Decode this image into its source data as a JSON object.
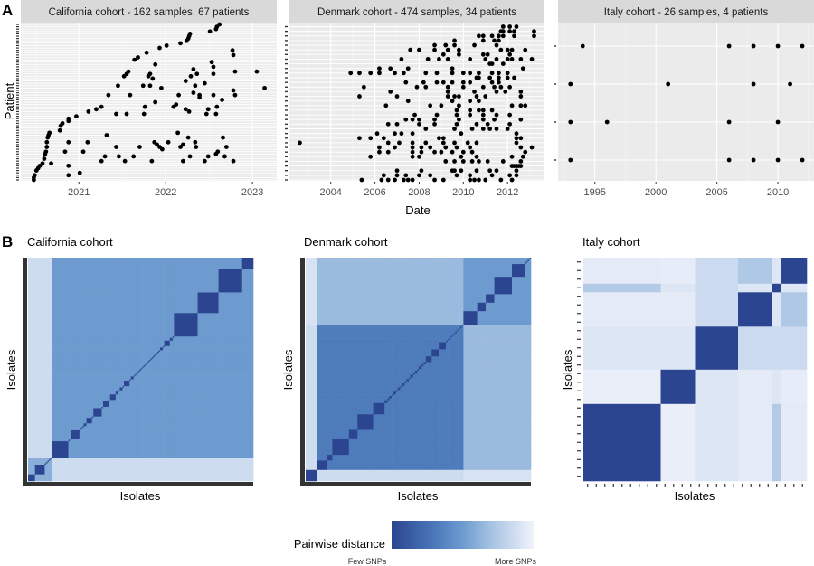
{
  "panel_labels": {
    "a": "A",
    "b": "B"
  },
  "colors": {
    "panel_bg": "#ebebeb",
    "strip_bg": "#d9d9d9",
    "dot": "#000000",
    "gradient": [
      "#2b4590",
      "#4a78b9",
      "#6d9bcf",
      "#a5c2e2",
      "#cbdaee",
      "#f0f3fc"
    ]
  },
  "chart_data": [
    {
      "type": "scatter",
      "panel": "A",
      "title": "California cohort - 162 samples, 67 patients",
      "xlabel": "",
      "ylabel": "Patient",
      "xlim": [
        2020.33,
        2023.28
      ],
      "xticks": [
        "2021",
        "2022",
        "2023"
      ],
      "xtick_values": [
        2021,
        2022,
        2023
      ],
      "n_patients": 67,
      "grid": true,
      "points": [
        [
          2020.48,
          1
        ],
        [
          2020.48,
          2
        ],
        [
          2020.49,
          3
        ],
        [
          2020.51,
          5
        ],
        [
          2020.53,
          6
        ],
        [
          2020.55,
          7
        ],
        [
          2020.58,
          8
        ],
        [
          2020.6,
          10
        ],
        [
          2020.61,
          12
        ],
        [
          2020.62,
          13
        ],
        [
          2020.63,
          15
        ],
        [
          2020.63,
          17
        ],
        [
          2020.64,
          19
        ],
        [
          2020.65,
          20
        ],
        [
          2020.66,
          21
        ],
        [
          2020.68,
          8
        ],
        [
          2020.78,
          22
        ],
        [
          2020.79,
          24
        ],
        [
          2020.81,
          25
        ],
        [
          2020.88,
          26
        ],
        [
          2020.88,
          27
        ],
        [
          2020.97,
          28
        ],
        [
          2020.88,
          17
        ],
        [
          2020.84,
          13
        ],
        [
          2020.88,
          7
        ],
        [
          2020.88,
          3
        ],
        [
          2021.01,
          4
        ],
        [
          2021.05,
          13
        ],
        [
          2021.1,
          17
        ],
        [
          2021.11,
          30
        ],
        [
          2021.2,
          31
        ],
        [
          2021.26,
          32
        ],
        [
          2021.34,
          37
        ],
        [
          2021.32,
          20
        ],
        [
          2021.3,
          11
        ],
        [
          2021.26,
          9
        ],
        [
          2021.43,
          29
        ],
        [
          2021.55,
          29
        ],
        [
          2021.43,
          15
        ],
        [
          2021.46,
          11
        ],
        [
          2021.53,
          9
        ],
        [
          2021.45,
          41
        ],
        [
          2021.59,
          37
        ],
        [
          2021.52,
          45
        ],
        [
          2021.55,
          46
        ],
        [
          2021.57,
          47
        ],
        [
          2021.64,
          52
        ],
        [
          2021.68,
          53
        ],
        [
          2021.78,
          55
        ],
        [
          2021.88,
          50
        ],
        [
          2021.8,
          45
        ],
        [
          2021.82,
          46
        ],
        [
          2021.85,
          44
        ],
        [
          2021.74,
          41
        ],
        [
          2021.82,
          41
        ],
        [
          2021.95,
          40
        ],
        [
          2021.76,
          32
        ],
        [
          2021.75,
          29
        ],
        [
          2021.88,
          34
        ],
        [
          2021.63,
          11
        ],
        [
          2021.7,
          15
        ],
        [
          2021.84,
          9
        ],
        [
          2021.87,
          17
        ],
        [
          2021.9,
          16
        ],
        [
          2021.93,
          15
        ],
        [
          2021.96,
          14
        ],
        [
          2022.03,
          17
        ],
        [
          2021.93,
          57
        ],
        [
          2022.01,
          58
        ],
        [
          2022.17,
          59
        ],
        [
          2022.24,
          60
        ],
        [
          2022.26,
          61
        ],
        [
          2022.28,
          63
        ],
        [
          2022.27,
          62
        ],
        [
          2022.51,
          64
        ],
        [
          2022.58,
          65
        ],
        [
          2022.59,
          66
        ],
        [
          2022.62,
          67
        ],
        [
          2022.23,
          43
        ],
        [
          2022.29,
          45
        ],
        [
          2022.32,
          48
        ],
        [
          2022.36,
          46
        ],
        [
          2022.34,
          41
        ],
        [
          2022.32,
          38
        ],
        [
          2022.39,
          37
        ],
        [
          2022.39,
          36
        ],
        [
          2022.45,
          42
        ],
        [
          2022.15,
          37
        ],
        [
          2022.09,
          32
        ],
        [
          2022.12,
          33
        ],
        [
          2022.27,
          30
        ],
        [
          2022.23,
          31
        ],
        [
          2022.14,
          21
        ],
        [
          2022.26,
          19
        ],
        [
          2022.34,
          17
        ],
        [
          2022.35,
          15
        ],
        [
          2022.17,
          15
        ],
        [
          2022.2,
          16
        ],
        [
          2022.28,
          11
        ],
        [
          2022.2,
          9
        ],
        [
          2022.45,
          9
        ],
        [
          2022.49,
          11
        ],
        [
          2022.58,
          12
        ],
        [
          2022.6,
          13
        ],
        [
          2022.68,
          11
        ],
        [
          2022.7,
          15
        ],
        [
          2022.66,
          19
        ],
        [
          2022.53,
          51
        ],
        [
          2022.55,
          49
        ],
        [
          2022.55,
          46
        ],
        [
          2022.55,
          37
        ],
        [
          2022.49,
          31
        ],
        [
          2022.47,
          29
        ],
        [
          2022.59,
          32
        ],
        [
          2022.58,
          29
        ],
        [
          2022.65,
          35
        ],
        [
          2022.77,
          56
        ],
        [
          2022.78,
          54
        ],
        [
          2022.8,
          47
        ],
        [
          2022.78,
          39
        ],
        [
          2022.8,
          37
        ],
        [
          2022.78,
          9
        ],
        [
          2023.05,
          47
        ],
        [
          2023.14,
          40
        ]
      ]
    },
    {
      "type": "scatter",
      "panel": "A",
      "title": "Denmark cohort - 474 samples, 34 patients",
      "xlabel": "Date",
      "ylabel": "",
      "xlim": [
        2002.13,
        2013.67
      ],
      "xticks": [
        "2004",
        "2006",
        "2008",
        "2010",
        "2012"
      ],
      "xtick_values": [
        2004,
        2006,
        2008,
        2010,
        2012
      ],
      "n_patients": 34,
      "grid": true,
      "patients": [
        [
          2005.4,
          2006.3,
          2006.6,
          2006.9,
          2007.3,
          2007.5,
          2007.7,
          2008.7,
          2009.1,
          2010.3,
          2010.5,
          2010.7,
          2011.0,
          2011.7,
          2012.2
        ],
        [
          2006.4,
          2007.0,
          2007.4,
          2008.0,
          2008.5,
          2009.7,
          2010.3,
          2011.3,
          2012.1,
          2012.4
        ],
        [
          2007.0,
          2008.1,
          2009.5,
          2009.6,
          2009.9,
          2010.6,
          2011.2,
          2011.5,
          2012.4
        ],
        [
          2012.2,
          2012.3,
          2012.4,
          2012.5,
          2012.6
        ],
        [
          2009.2,
          2009.6,
          2010.0,
          2010.4,
          2010.7,
          2011.1,
          2011.8,
          2012.6
        ],
        [
          2005.8,
          2007.7,
          2008.0,
          2009.9,
          2010.6,
          2012.2,
          2012.7
        ],
        [
          2006.2,
          2006.6,
          2007.7,
          2008.1,
          2008.7,
          2009.0,
          2009.5,
          2010.0,
          2010.4,
          2012.8
        ],
        [
          2006.2,
          2006.9,
          2007.7,
          2008.1,
          2008.5,
          2009.2,
          2009.7,
          2010.3,
          2012.6,
          2013.1
        ],
        [
          2002.6,
          2006.6,
          2007.1,
          2007.7,
          2008.3,
          2009.1,
          2009.6,
          2010.2,
          2010.6,
          2012.4
        ],
        [
          2005.3,
          2005.8,
          2006.4,
          2008.9,
          2009.1,
          2012.4,
          2012.6
        ],
        [
          2006.1,
          2006.9,
          2007.2,
          2007.7,
          2009.9,
          2012.4
        ],
        [
          2008.3,
          2009.6,
          2010.4,
          2010.9,
          2011.2,
          2011.5,
          2012.0
        ],
        [
          2006.6,
          2007.0,
          2008.0,
          2008.7,
          2009.7,
          2010.6,
          2011.1,
          2012.1
        ],
        [
          2007.4,
          2007.7,
          2008.0,
          2008.7,
          2009.8,
          2010.9,
          2011.4,
          2012.6
        ],
        [
          2007.8,
          2008.8,
          2009.7,
          2010.3,
          2010.9,
          2011.5,
          2012.1
        ],
        [
          2009.7,
          2010.3,
          2010.7,
          2010.9,
          2011.3
        ],
        [
          2006.5,
          2008.5,
          2009.0,
          2009.8,
          2012.2,
          2012.6,
          2012.8
        ],
        [
          2007.5,
          2009.5,
          2010.3,
          2010.7
        ],
        [
          2005.3,
          2007.0,
          2009.3,
          2009.6,
          2009.8,
          2010.6,
          2011.0,
          2012.6
        ],
        [
          2006.7,
          2009.3,
          2010.5,
          2011.5,
          2011.9,
          2012.6
        ],
        [
          2005.5,
          2007.9,
          2008.3,
          2009.3,
          2010.0,
          2010.9,
          2011.4,
          2011.7,
          2012.1
        ],
        [
          2007.4,
          2008.2,
          2008.8,
          2009.1,
          2009.5,
          2010.0,
          2010.3,
          2011.3,
          2011.6
        ],
        [
          2010.6,
          2010.7,
          2011.2,
          2011.6,
          2012.0,
          2012.3
        ],
        [
          2004.9,
          2005.3,
          2005.8,
          2006.2,
          2006.9,
          2007.3,
          2008.3,
          2008.8,
          2009.5,
          2010.0,
          2010.3,
          2010.7,
          2011.3,
          2011.6,
          2012.0
        ],
        [
          2006.2,
          2006.7,
          2007.5,
          2009.5,
          2012.7
        ],
        [
          2011.2,
          2011.3,
          2011.8
        ],
        [
          2007.2,
          2008.4,
          2008.9,
          2009.3,
          2010.3,
          2011.0,
          2011.5,
          2012.0,
          2012.2,
          2012.6,
          2013.1
        ],
        [
          2009.1,
          2009.8,
          2010.9,
          2011.1,
          2012.1
        ],
        [
          2007.6,
          2008.0,
          2008.7,
          2009.3,
          2009.8,
          2011.7,
          2012.0,
          2012.2,
          2012.8
        ],
        [
          2008.7,
          2009.2,
          2009.6,
          2010.5,
          2011.5
        ],
        [
          2009.6,
          2010.9,
          2011.4,
          2011.6
        ],
        [
          2010.7,
          2010.9,
          2011.3,
          2011.6,
          2011.8,
          2012.3,
          2013.2
        ],
        [
          2011.7,
          2011.8,
          2012.1,
          2012.3,
          2013.2
        ],
        [
          2011.8,
          2012.1,
          2012.4
        ]
      ]
    },
    {
      "type": "scatter",
      "panel": "A",
      "title": "Italy cohort - 26 samples, 4 patients",
      "xlabel": "",
      "ylabel": "",
      "xlim": [
        1991.98,
        2012.96
      ],
      "xticks": [
        "1995",
        "2000",
        "2005",
        "2010"
      ],
      "xtick_values": [
        1995,
        2000,
        2005,
        2010
      ],
      "n_patients": 4,
      "grid": true,
      "patients": [
        [
          1993,
          2006,
          2008,
          2010,
          2012
        ],
        [
          1993,
          1996,
          2006,
          2010
        ],
        [
          1993,
          2001,
          2008,
          2011
        ],
        [
          1994,
          2006,
          2008,
          2010,
          2012
        ]
      ]
    },
    {
      "type": "heatmap",
      "panel": "B",
      "title": "California cohort",
      "xlabel": "Isolates",
      "ylabel": "Isolates",
      "n_isolates": 162,
      "groups": [
        {
          "clusters": [
            5,
            7,
            1,
            1,
            1,
            1,
            1
          ],
          "within": 0.6
        },
        {
          "clusters": [
            12,
            1,
            1,
            6,
            1,
            1,
            1,
            2,
            4,
            1,
            6,
            1,
            4,
            1,
            4,
            2,
            1,
            2,
            1,
            4,
            1,
            2,
            1,
            1,
            1,
            1,
            1,
            1,
            1,
            1,
            1,
            1,
            1,
            1,
            1,
            1,
            1,
            1,
            1,
            1,
            1,
            2,
            1,
            4,
            2,
            1,
            17,
            15,
            17,
            8
          ],
          "within": 0.5
        }
      ],
      "between": [
        [
          0,
          0.86
        ],
        [
          0.86,
          0
        ]
      ]
    },
    {
      "type": "heatmap",
      "panel": "B",
      "title": "Denmark cohort",
      "xlabel": "Isolates",
      "ylabel": "Isolates",
      "n_isolates": 474,
      "groups": [
        {
          "clusters": [
            24
          ],
          "within": 0.5
        },
        {
          "clusters": [
            20,
            12,
            35,
            18,
            33,
            24,
            6,
            4,
            5,
            3,
            6,
            4,
            5,
            3,
            6,
            4,
            5,
            3,
            6,
            4,
            5,
            3,
            6,
            4,
            5,
            12,
            15,
            15,
            3,
            2,
            3,
            2,
            3,
            2,
            3,
            2,
            3,
            2,
            3,
            2,
            3,
            2,
            2
          ],
          "within": 0.32
        },
        {
          "clusters": [
            29,
            18,
            18,
            37,
            27,
            3,
            3,
            3,
            2,
            2
          ],
          "within": 0.5
        }
      ],
      "between": [
        [
          0,
          0.86,
          0.9
        ],
        [
          0.86,
          0,
          0.66
        ],
        [
          0.9,
          0.66,
          0
        ]
      ]
    },
    {
      "type": "heatmap",
      "panel": "B",
      "title": "Italy cohort",
      "xlabel": "Isolates",
      "ylabel": "Isolates",
      "n_isolates": 26,
      "groups": [
        {
          "clusters": [
            9
          ],
          "within": 0
        },
        {
          "clusters": [
            4
          ],
          "within": 0
        },
        {
          "clusters": [
            5
          ],
          "within": 0
        },
        {
          "clusters": [
            4
          ],
          "within": 0
        },
        {
          "clusters": [
            1
          ],
          "within": 0
        },
        {
          "clusters": [
            3
          ],
          "within": 0
        }
      ],
      "between": [
        [
          0,
          0.97,
          0.92,
          0.95,
          0.75,
          0.95
        ],
        [
          0.97,
          0,
          0.92,
          0.95,
          0.92,
          0.96
        ],
        [
          0.92,
          0.92,
          0,
          0.85,
          0.85,
          0.85
        ],
        [
          0.95,
          0.95,
          0.85,
          0,
          0.92,
          0.74
        ],
        [
          0.75,
          0.92,
          0.85,
          0.92,
          0,
          0.92
        ],
        [
          0.95,
          0.96,
          0.85,
          0.74,
          0.92,
          0
        ]
      ]
    }
  ],
  "legend": {
    "title": "Pairwise distance",
    "low_label": "Few SNPs",
    "high_label": "More SNPs"
  }
}
